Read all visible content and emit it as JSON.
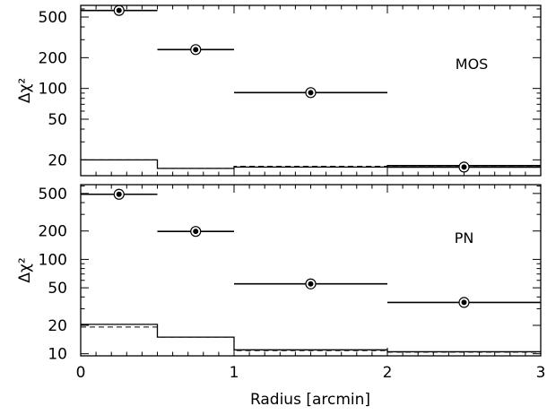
{
  "chart_data": [
    {
      "type": "scatter",
      "panel_label": "MOS",
      "xlabel": "Radius [arcmin]",
      "ylabel": "Δχ²",
      "yscale": "log",
      "xlim": [
        0,
        3
      ],
      "ylim": [
        14,
        650
      ],
      "xticks": [
        0,
        1,
        2,
        3
      ],
      "yticks": [
        20,
        50,
        100,
        200,
        500
      ],
      "points": [
        {
          "x": 0.25,
          "y": 580,
          "xerr": [
            0,
            0.5
          ]
        },
        {
          "x": 0.75,
          "y": 240,
          "xerr": [
            0.5,
            1
          ]
        },
        {
          "x": 1.5,
          "y": 91,
          "xerr": [
            1,
            2
          ]
        },
        {
          "x": 2.5,
          "y": 17,
          "xerr": [
            2,
            3
          ]
        }
      ],
      "reference_solid": [
        {
          "x0": 0,
          "x1": 0.5,
          "y": 20
        },
        {
          "x0": 0.5,
          "x1": 1,
          "y": 16.5
        },
        {
          "x0": 1,
          "x1": 2,
          "y": 17
        },
        {
          "x0": 2,
          "x1": 3,
          "y": 17.6
        }
      ],
      "reference_dashed": [
        {
          "x0": 0,
          "x1": 0.5,
          "y": 20
        },
        {
          "x0": 0.5,
          "x1": 1,
          "y": 16.5
        },
        {
          "x0": 1,
          "x1": 2,
          "y": 17.3
        },
        {
          "x0": 2,
          "x1": 3,
          "y": 17.1
        }
      ]
    },
    {
      "type": "scatter",
      "panel_label": "PN",
      "xlabel": "Radius [arcmin]",
      "ylabel": "Δχ²",
      "yscale": "log",
      "xlim": [
        0,
        3
      ],
      "ylim": [
        9.5,
        620
      ],
      "xticks": [
        0,
        1,
        2,
        3
      ],
      "yticks": [
        10,
        20,
        50,
        100,
        200,
        500
      ],
      "points": [
        {
          "x": 0.25,
          "y": 490,
          "xerr": [
            0,
            0.5
          ]
        },
        {
          "x": 0.75,
          "y": 198,
          "xerr": [
            0.5,
            1
          ]
        },
        {
          "x": 1.5,
          "y": 55,
          "xerr": [
            1,
            2
          ]
        },
        {
          "x": 2.5,
          "y": 35,
          "xerr": [
            2,
            3
          ]
        }
      ],
      "reference_solid": [
        {
          "x0": 0,
          "x1": 0.5,
          "y": 20.5
        },
        {
          "x0": 0.5,
          "x1": 1,
          "y": 15
        },
        {
          "x0": 1,
          "x1": 2,
          "y": 11
        },
        {
          "x0": 2,
          "x1": 3,
          "y": 10.5
        }
      ],
      "reference_dashed": [
        {
          "x0": 0,
          "x1": 0.5,
          "y": 19.2
        },
        {
          "x0": 0.5,
          "x1": 1,
          "y": 15
        },
        {
          "x0": 1,
          "x1": 2,
          "y": 10.8
        },
        {
          "x0": 2,
          "x1": 3,
          "y": 10.4
        }
      ]
    }
  ]
}
